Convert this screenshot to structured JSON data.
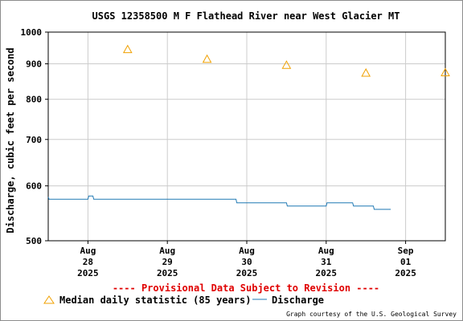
{
  "chart_data": {
    "type": "scatter",
    "title": "USGS 12358500 M F Flathead River near West Glacier MT",
    "ylabel": "Discharge, cubic feet per second",
    "xlabel": "",
    "y_scale": "log",
    "ylim": [
      500,
      1000
    ],
    "yticks": [
      "500",
      "600",
      "700",
      "800",
      "900",
      "1000"
    ],
    "xlim": [
      "2025-08-27 12:00",
      "2025-09-01 12:00"
    ],
    "x_ticks": [
      {
        "day": 0,
        "month": "Aug",
        "date": "28",
        "year": "2025"
      },
      {
        "day": 1,
        "month": "Aug",
        "date": "29",
        "year": "2025"
      },
      {
        "day": 2,
        "month": "Aug",
        "date": "30",
        "year": "2025"
      },
      {
        "day": 3,
        "month": "Aug",
        "date": "31",
        "year": "2025"
      },
      {
        "day": 4,
        "month": "Sep",
        "date": "01",
        "year": "2025"
      }
    ],
    "grid": true,
    "series": [
      {
        "name": "Median daily statistic (85 years)",
        "marker": "triangle",
        "color": "#f0a000",
        "points": [
          {
            "x": "2025-08-28",
            "y": 944
          },
          {
            "x": "2025-08-29",
            "y": 914
          },
          {
            "x": "2025-08-30",
            "y": 896
          },
          {
            "x": "2025-08-31",
            "y": 873
          },
          {
            "x": "2025-09-01",
            "y": 874
          }
        ]
      },
      {
        "name": "Discharge",
        "marker": "line",
        "color": "#1f78b4",
        "points": [
          {
            "x": "2025-08-27 12:00",
            "y": 578
          },
          {
            "x": "2025-08-27 12:15",
            "y": 574
          },
          {
            "x": "2025-08-28 00:00",
            "y": 574
          },
          {
            "x": "2025-08-28 00:15",
            "y": 580
          },
          {
            "x": "2025-08-28 01:30",
            "y": 580
          },
          {
            "x": "2025-08-28 01:45",
            "y": 574
          },
          {
            "x": "2025-08-29 20:45",
            "y": 574
          },
          {
            "x": "2025-08-29 21:00",
            "y": 567
          },
          {
            "x": "2025-08-30 12:00",
            "y": 567
          },
          {
            "x": "2025-08-30 12:15",
            "y": 561
          },
          {
            "x": "2025-08-31 00:00",
            "y": 561
          },
          {
            "x": "2025-08-31 00:15",
            "y": 567
          },
          {
            "x": "2025-08-31 08:00",
            "y": 567
          },
          {
            "x": "2025-08-31 08:15",
            "y": 561
          },
          {
            "x": "2025-08-31 14:15",
            "y": 561
          },
          {
            "x": "2025-08-31 14:30",
            "y": 555
          },
          {
            "x": "2025-08-31 19:30",
            "y": 555
          }
        ]
      }
    ],
    "legend": {
      "placement": "bottom-left"
    },
    "annotations": {
      "provisional": "---- Provisional Data Subject to Revision ----",
      "credit": "Graph courtesy of the U.S. Geological Survey"
    }
  }
}
